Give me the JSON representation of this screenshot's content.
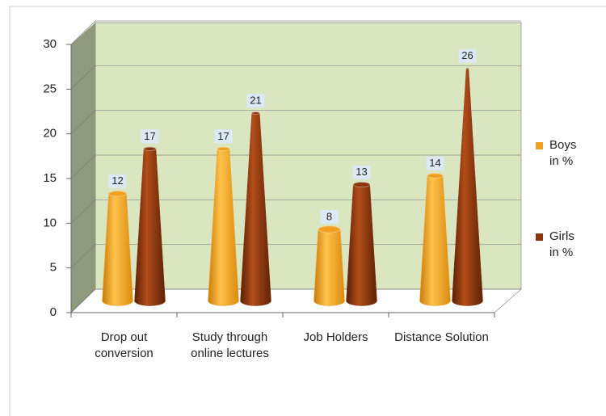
{
  "chart_data": {
    "type": "bar",
    "categories": [
      "Drop out conversion",
      "Study through online lectures",
      "Job Holders",
      "Distance Solution"
    ],
    "series": [
      {
        "name": "Boys in %",
        "color": "#f0a020",
        "values": [
          12,
          17,
          8,
          14
        ]
      },
      {
        "name": "Girls in %",
        "color": "#8a3510",
        "values": [
          17,
          21,
          13,
          26
        ]
      }
    ],
    "ylim": [
      0,
      30
    ],
    "yticks": [
      0,
      5,
      10,
      15,
      20,
      25,
      30
    ],
    "grid": true,
    "legend": "right"
  }
}
